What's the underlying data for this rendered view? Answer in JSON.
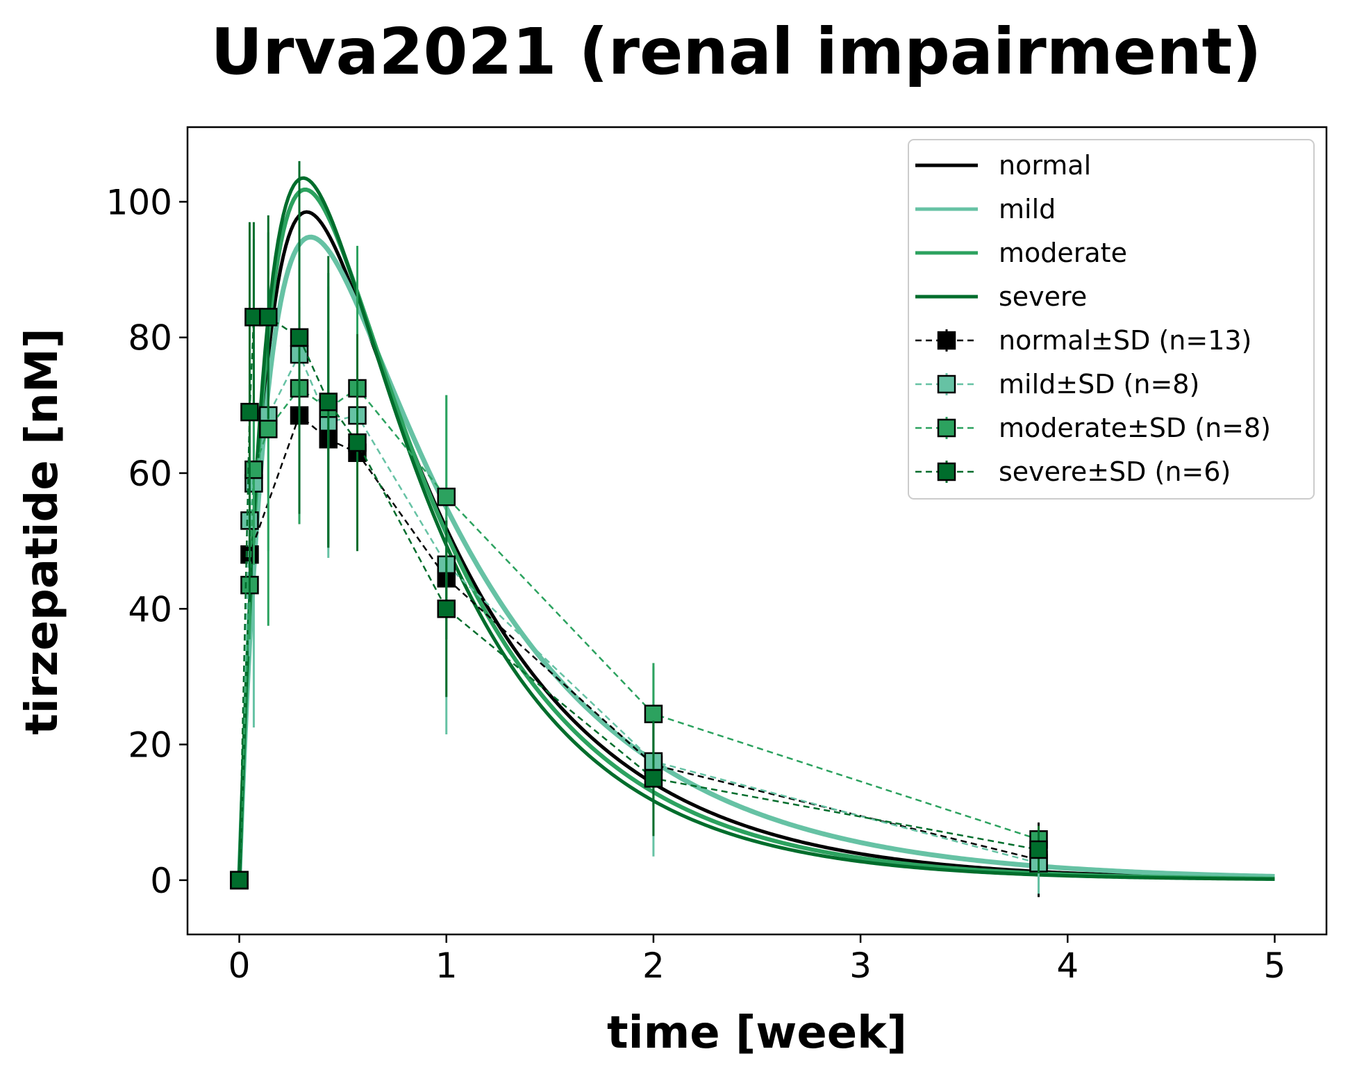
{
  "chart_data": {
    "type": "line",
    "title": "Urva2021 (renal impairment)",
    "xlabel": "time [week]",
    "ylabel": "tirzepatide [nM]",
    "xlim": [
      -0.25,
      5.25
    ],
    "ylim": [
      -8,
      111
    ],
    "xticks": [
      0,
      1,
      2,
      3,
      4,
      5
    ],
    "yticks": [
      0,
      20,
      40,
      60,
      80,
      100
    ],
    "grid": false,
    "legend_position": "top-right",
    "model_series": [
      {
        "name": "normal",
        "color": "#000000",
        "peak": 98.5,
        "tpeak": 0.48,
        "ke": 1.3,
        "ka": 6.0
      },
      {
        "name": "mild",
        "color": "#66c2a4",
        "peak": 94.8,
        "tpeak": 0.49,
        "ke": 1.15,
        "ka": 5.9
      },
      {
        "name": "moderate",
        "color": "#2ca25f",
        "peak": 101.8,
        "tpeak": 0.48,
        "ke": 1.38,
        "ka": 6.0
      },
      {
        "name": "severe",
        "color": "#006d2c",
        "peak": 103.5,
        "tpeak": 0.48,
        "ke": 1.45,
        "ka": 6.1
      }
    ],
    "data_series": [
      {
        "name": "normal±SD (n=13)",
        "color": "#000000",
        "x": [
          0,
          0.05,
          0.29,
          0.43,
          0.57,
          1.0,
          2.0,
          3.86
        ],
        "y": [
          0,
          48,
          68.5,
          65,
          63,
          44.5,
          17,
          3
        ],
        "sd": [
          0,
          5,
          16,
          16,
          14,
          9,
          6,
          5.5
        ]
      },
      {
        "name": "mild±SD (n=8)",
        "color": "#66c2a4",
        "x": [
          0,
          0.05,
          0.07,
          0.14,
          0.29,
          0.43,
          0.57,
          1.0,
          2.0,
          3.86
        ],
        "y": [
          0,
          53,
          58.5,
          68.5,
          77.5,
          67.5,
          68.5,
          46.5,
          17.5,
          2.5
        ],
        "sd": [
          0,
          20,
          36,
          20,
          20,
          20,
          18,
          25,
          14,
          4.5
        ]
      },
      {
        "name": "moderate±SD (n=8)",
        "color": "#2ca25f",
        "x": [
          0,
          0.05,
          0.07,
          0.14,
          0.29,
          0.43,
          0.57,
          1.0,
          2.0,
          3.86
        ],
        "y": [
          0,
          43.5,
          60.5,
          66.5,
          72.5,
          69.5,
          72.5,
          56.5,
          24.5,
          6
        ],
        "sd": [
          0,
          8,
          14,
          29,
          20,
          20,
          21,
          15,
          7.5,
          2
        ]
      },
      {
        "name": "severe±SD (n=6)",
        "color": "#006d2c",
        "x": [
          0,
          0.05,
          0.07,
          0.14,
          0.29,
          0.43,
          0.57,
          1.0,
          2.0,
          3.86
        ],
        "y": [
          0,
          69,
          83,
          83,
          80,
          70.5,
          64.5,
          40,
          15,
          4.5
        ],
        "sd": [
          0,
          28,
          14,
          15,
          26,
          21.5,
          16,
          13,
          8.5,
          3.5
        ]
      }
    ]
  }
}
